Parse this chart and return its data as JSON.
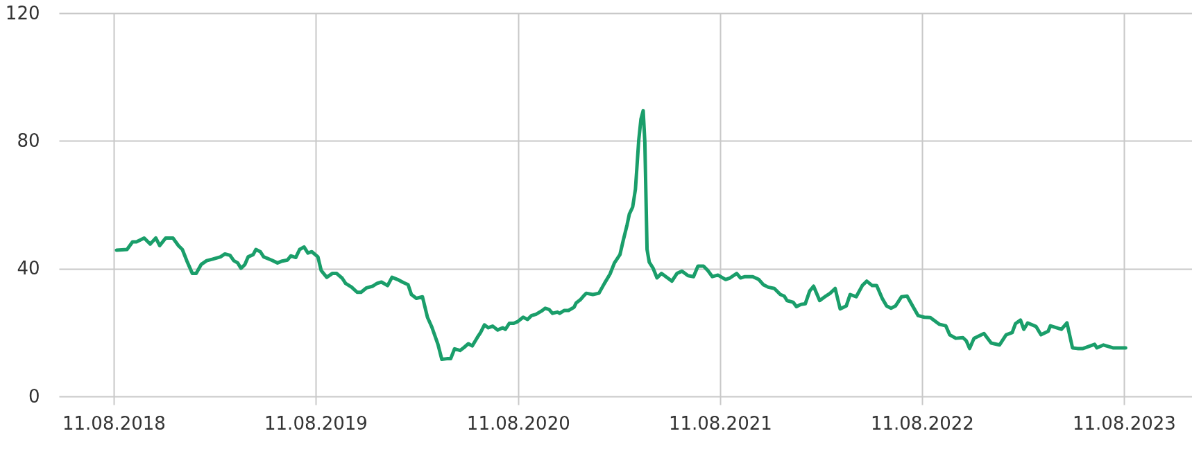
{
  "chart_data": {
    "type": "line",
    "grid": true,
    "line_style": "solid",
    "marker": "none",
    "xlim": [
      "2018-05-04",
      "2023-12-12"
    ],
    "xticks": [
      {
        "value": "2018-08-11",
        "label": "11.08.2018"
      },
      {
        "value": "2019-08-11",
        "label": "11.08.2019"
      },
      {
        "value": "2020-08-11",
        "label": "11.08.2020"
      },
      {
        "value": "2021-08-11",
        "label": "11.08.2021"
      },
      {
        "value": "2022-08-11",
        "label": "11.08.2022"
      },
      {
        "value": "2023-08-11",
        "label": "11.08.2023"
      }
    ],
    "ylim": [
      0,
      120
    ],
    "yticks": [
      0,
      40,
      80,
      120
    ],
    "x": [
      "2018-08-16",
      "2018-09-04",
      "2018-09-14",
      "2018-09-21",
      "2018-10-05",
      "2018-10-16",
      "2018-10-26",
      "2018-11-02",
      "2018-11-13",
      "2018-11-26",
      "2018-12-06",
      "2018-12-13",
      "2018-12-21",
      "2018-12-31",
      "2019-01-07",
      "2019-01-16",
      "2019-01-26",
      "2019-02-06",
      "2019-02-20",
      "2019-02-28",
      "2019-03-09",
      "2019-03-16",
      "2019-03-23",
      "2019-03-29",
      "2019-04-05",
      "2019-04-11",
      "2019-04-20",
      "2019-04-25",
      "2019-05-03",
      "2019-05-09",
      "2019-05-23",
      "2019-06-03",
      "2019-06-10",
      "2019-06-21",
      "2019-06-27",
      "2019-07-06",
      "2019-07-13",
      "2019-07-21",
      "2019-07-28",
      "2019-08-04",
      "2019-08-15",
      "2019-08-21",
      "2019-08-31",
      "2019-09-10",
      "2019-09-18",
      "2019-09-28",
      "2019-10-04",
      "2019-10-15",
      "2019-10-25",
      "2019-11-01",
      "2019-11-11",
      "2019-11-22",
      "2019-11-30",
      "2019-12-08",
      "2019-12-19",
      "2019-12-27",
      "2020-01-06",
      "2020-01-16",
      "2020-01-25",
      "2020-01-31",
      "2020-02-09",
      "2020-02-20",
      "2020-02-29",
      "2020-03-08",
      "2020-03-19",
      "2020-03-26",
      "2020-04-04",
      "2020-04-11",
      "2020-04-18",
      "2020-04-28",
      "2020-05-05",
      "2020-05-13",
      "2020-05-20",
      "2020-05-29",
      "2020-06-04",
      "2020-06-11",
      "2020-06-18",
      "2020-06-26",
      "2020-07-05",
      "2020-07-14",
      "2020-07-19",
      "2020-07-26",
      "2020-08-03",
      "2020-08-10",
      "2020-08-20",
      "2020-08-28",
      "2020-09-04",
      "2020-09-12",
      "2020-09-22",
      "2020-09-29",
      "2020-10-06",
      "2020-10-12",
      "2020-10-21",
      "2020-10-25",
      "2020-11-02",
      "2020-11-10",
      "2020-11-20",
      "2020-11-24",
      "2020-12-01",
      "2020-12-07",
      "2020-12-12",
      "2020-12-24",
      "2021-01-04",
      "2021-01-14",
      "2021-01-24",
      "2021-02-01",
      "2021-02-11",
      "2021-02-17",
      "2021-02-24",
      "2021-02-28",
      "2021-03-06",
      "2021-03-11",
      "2021-03-17",
      "2021-03-21",
      "2021-03-25",
      "2021-03-28",
      "2021-04-01",
      "2021-04-05",
      "2021-04-12",
      "2021-04-19",
      "2021-04-27",
      "2021-05-08",
      "2021-05-16",
      "2021-05-25",
      "2021-06-03",
      "2021-06-14",
      "2021-06-24",
      "2021-07-02",
      "2021-07-12",
      "2021-07-20",
      "2021-07-28",
      "2021-08-07",
      "2021-08-21",
      "2021-08-29",
      "2021-09-10",
      "2021-09-17",
      "2021-09-25",
      "2021-10-09",
      "2021-10-20",
      "2021-10-28",
      "2021-11-06",
      "2021-11-17",
      "2021-11-28",
      "2021-12-05",
      "2021-12-10",
      "2021-12-21",
      "2021-12-27",
      "2022-01-04",
      "2022-01-12",
      "2022-01-20",
      "2022-01-27",
      "2022-02-07",
      "2022-02-18",
      "2022-02-26",
      "2022-03-07",
      "2022-03-16",
      "2022-03-27",
      "2022-04-03",
      "2022-04-14",
      "2022-04-25",
      "2022-05-03",
      "2022-05-13",
      "2022-05-21",
      "2022-05-31",
      "2022-06-08",
      "2022-06-16",
      "2022-06-24",
      "2022-07-05",
      "2022-07-15",
      "2022-07-25",
      "2022-08-04",
      "2022-08-15",
      "2022-08-26",
      "2022-09-11",
      "2022-09-23",
      "2022-09-30",
      "2022-10-11",
      "2022-10-24",
      "2022-10-30",
      "2022-11-05",
      "2022-11-13",
      "2022-12-01",
      "2022-12-14",
      "2022-12-29",
      "2023-01-10",
      "2023-01-21",
      "2023-01-27",
      "2023-02-05",
      "2023-02-11",
      "2023-02-18",
      "2023-03-05",
      "2023-03-14",
      "2023-03-27",
      "2023-03-31",
      "2023-04-11",
      "2023-04-20",
      "2023-04-30",
      "2023-05-10",
      "2023-05-19",
      "2023-05-29",
      "2023-06-19",
      "2023-06-23",
      "2023-07-05",
      "2023-07-22",
      "2023-08-14"
    ],
    "series": [
      {
        "color": "#1a9e6a",
        "values": [
          45.8,
          46,
          48.4,
          48.4,
          49.6,
          47.7,
          49.6,
          47.2,
          49.6,
          49.6,
          47.2,
          46,
          42.5,
          38.5,
          38.5,
          41.3,
          42.5,
          43,
          43.7,
          44.6,
          44.2,
          42.5,
          41.8,
          40.1,
          41.3,
          43.7,
          44.4,
          46,
          45.3,
          43.7,
          42.7,
          41.8,
          42.3,
          42.7,
          44,
          43.5,
          46,
          46.8,
          44.9,
          45.3,
          43.7,
          39.4,
          37.3,
          38.5,
          38.5,
          37,
          35.4,
          34.2,
          32.6,
          32.6,
          34,
          34.5,
          35.4,
          35.8,
          34.7,
          37.3,
          36.6,
          35.7,
          35,
          31.9,
          30.7,
          31.2,
          24.8,
          21.7,
          16.3,
          11.6,
          11.8,
          11.8,
          14.9,
          14.4,
          15.3,
          16.5,
          15.8,
          18.4,
          20,
          22.4,
          21.5,
          22,
          20.8,
          21.5,
          21,
          22.9,
          22.9,
          23.4,
          24.8,
          24.1,
          25.3,
          25.7,
          26.7,
          27.6,
          27.2,
          26,
          26.4,
          26,
          26.9,
          26.9,
          27.9,
          29.3,
          30.2,
          31.4,
          32.3,
          31.9,
          32.3,
          35.4,
          38.3,
          41.8,
          44.4,
          48.9,
          53.8,
          57.1,
          59.3,
          64.9,
          80.3,
          86.9,
          89.5,
          79.6,
          46,
          42,
          40.1,
          37.1,
          38.5,
          37.1,
          36.1,
          38.5,
          39.2,
          37.8,
          37.5,
          40.8,
          40.8,
          39.4,
          37.5,
          38,
          36.6,
          37.1,
          38.5,
          37.1,
          37.5,
          37.5,
          36.6,
          35,
          34.2,
          33.8,
          31.9,
          31.4,
          30,
          29.5,
          28.1,
          28.8,
          29,
          33,
          34.5,
          30,
          31.4,
          32.3,
          33.8,
          27.4,
          28.3,
          31.9,
          31.2,
          34.7,
          36.1,
          34.7,
          34.7,
          30.7,
          28.3,
          27.6,
          28.3,
          31.2,
          31.4,
          28.3,
          25.3,
          24.8,
          24.7,
          22.6,
          22.1,
          19.3,
          18.2,
          18.4,
          17.4,
          15,
          18.2,
          19.7,
          16.7,
          16.1,
          19.3,
          20,
          22.8,
          23.9,
          21,
          23,
          21.9,
          19.3,
          20.4,
          22.1,
          21.5,
          21,
          23,
          15.2,
          15,
          15,
          16.3,
          15.2,
          16.1,
          15.2,
          15.2
        ]
      }
    ]
  }
}
